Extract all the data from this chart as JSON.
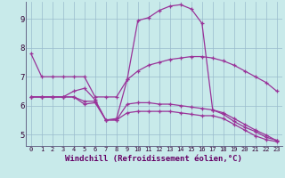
{
  "xlabel": "Windchill (Refroidissement éolien,°C)",
  "bg_color": "#c8eaea",
  "grid_color": "#99bbcc",
  "line_color": "#993399",
  "xlim": [
    -0.5,
    23.5
  ],
  "ylim": [
    4.6,
    9.6
  ],
  "xticks": [
    0,
    1,
    2,
    3,
    4,
    5,
    6,
    7,
    8,
    9,
    10,
    11,
    12,
    13,
    14,
    15,
    16,
    17,
    18,
    19,
    20,
    21,
    22,
    23
  ],
  "yticks": [
    5,
    6,
    7,
    8,
    9
  ],
  "hours": [
    0,
    1,
    2,
    3,
    4,
    5,
    6,
    7,
    8,
    9,
    10,
    11,
    12,
    13,
    14,
    15,
    16,
    17,
    18,
    19,
    20,
    21,
    22,
    23
  ],
  "line1": [
    7.8,
    7.0,
    7.0,
    7.0,
    7.0,
    7.0,
    6.3,
    6.3,
    6.3,
    6.9,
    7.2,
    7.4,
    7.5,
    7.6,
    7.65,
    7.7,
    7.7,
    7.65,
    7.55,
    7.4,
    7.2,
    7.0,
    6.8,
    6.5
  ],
  "line2": [
    6.3,
    6.3,
    6.3,
    6.3,
    6.5,
    6.6,
    6.2,
    5.5,
    5.55,
    6.9,
    8.95,
    9.05,
    9.3,
    9.45,
    9.5,
    9.35,
    8.85,
    5.85,
    5.7,
    5.45,
    5.25,
    5.1,
    4.9,
    4.8
  ],
  "line3": [
    6.3,
    6.3,
    6.3,
    6.3,
    6.3,
    6.15,
    6.15,
    5.5,
    5.5,
    6.05,
    6.1,
    6.1,
    6.05,
    6.05,
    6.0,
    5.95,
    5.9,
    5.85,
    5.75,
    5.55,
    5.35,
    5.15,
    4.98,
    4.78
  ],
  "line4": [
    6.3,
    6.3,
    6.3,
    6.3,
    6.3,
    6.05,
    6.1,
    5.5,
    5.5,
    5.75,
    5.8,
    5.8,
    5.8,
    5.8,
    5.75,
    5.7,
    5.65,
    5.65,
    5.55,
    5.35,
    5.15,
    4.95,
    4.82,
    4.75
  ]
}
